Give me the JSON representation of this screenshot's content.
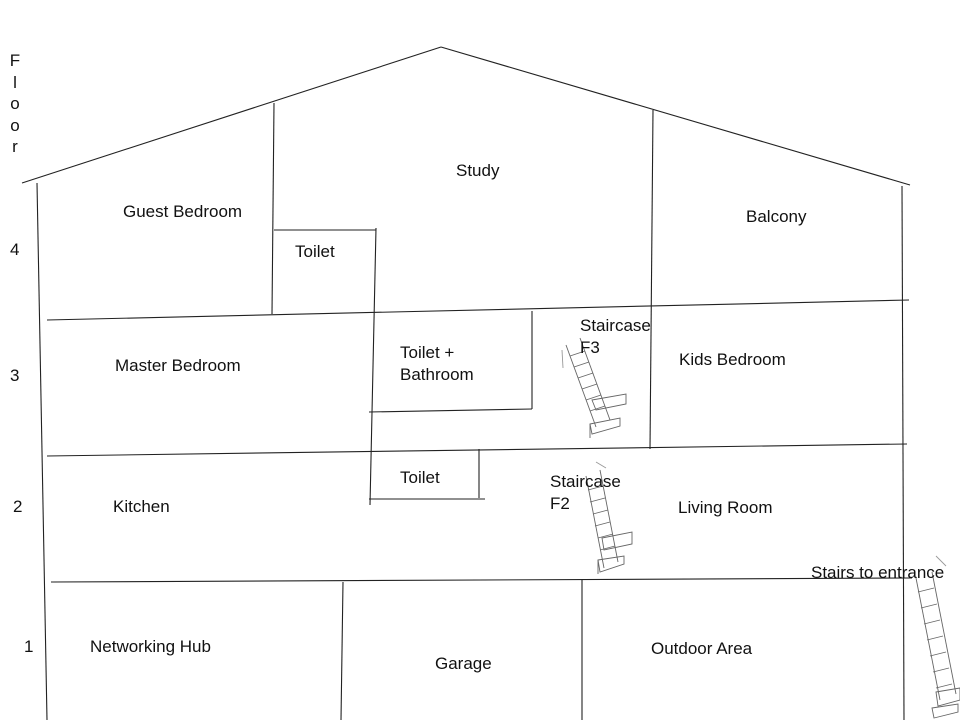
{
  "floor_heading": "Floor",
  "floor_numbers": {
    "f4": "4",
    "f3": "3",
    "f2": "2",
    "f1": "1"
  },
  "rooms": {
    "study": "Study",
    "guest_bedroom": "Guest Bedroom",
    "balcony": "Balcony",
    "toilet_f4": "Toilet",
    "master_bedroom": "Master Bedroom",
    "toilet_bathroom": "Toilet +\nBathroom",
    "staircase_f3": "Staircase\nF3",
    "kids_bedroom": "Kids Bedroom",
    "kitchen": "Kitchen",
    "toilet_f2": "Toilet",
    "staircase_f2": "Staircase\nF2",
    "living_room": "Living Room",
    "stairs_to_entrance": "Stairs to entrance",
    "networking_hub": "Networking Hub",
    "garage": "Garage",
    "outdoor_area": "Outdoor Area"
  }
}
